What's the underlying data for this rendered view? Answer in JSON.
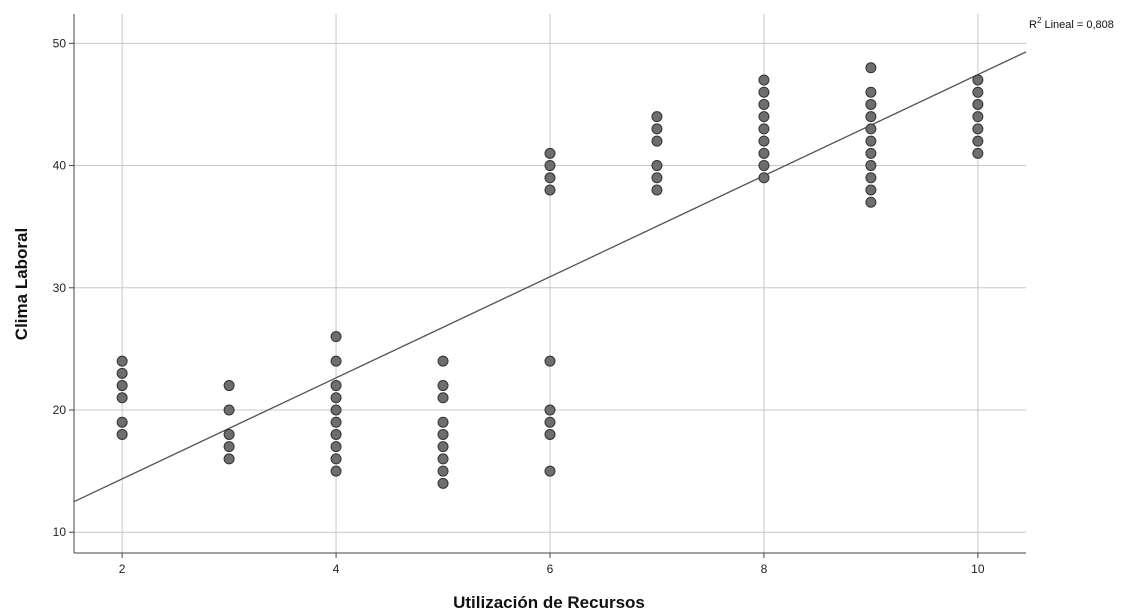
{
  "chart_data": {
    "type": "scatter",
    "title": "",
    "xlabel": "Utilización de Recursos",
    "ylabel": "Clima Laboral",
    "xlim": [
      1.55,
      10.45
    ],
    "ylim": [
      8.3,
      52.4
    ],
    "xticks": [
      2,
      4,
      6,
      8,
      10
    ],
    "yticks": [
      10,
      20,
      30,
      40,
      50
    ],
    "grid": true,
    "r2_prefix": "R",
    "r2_sup": "2",
    "r2_text": " Lineal = 0,808",
    "fit_line": {
      "x": [
        1.55,
        10.45
      ],
      "y": [
        12.5,
        49.3
      ]
    },
    "points": [
      {
        "x": 2,
        "y": 24
      },
      {
        "x": 2,
        "y": 23
      },
      {
        "x": 2,
        "y": 22
      },
      {
        "x": 2,
        "y": 21
      },
      {
        "x": 2,
        "y": 19
      },
      {
        "x": 2,
        "y": 18
      },
      {
        "x": 3,
        "y": 22
      },
      {
        "x": 3,
        "y": 20
      },
      {
        "x": 3,
        "y": 18
      },
      {
        "x": 3,
        "y": 17
      },
      {
        "x": 3,
        "y": 16
      },
      {
        "x": 4,
        "y": 26
      },
      {
        "x": 4,
        "y": 24
      },
      {
        "x": 4,
        "y": 22
      },
      {
        "x": 4,
        "y": 21
      },
      {
        "x": 4,
        "y": 20
      },
      {
        "x": 4,
        "y": 19
      },
      {
        "x": 4,
        "y": 18
      },
      {
        "x": 4,
        "y": 17
      },
      {
        "x": 4,
        "y": 16
      },
      {
        "x": 4,
        "y": 15
      },
      {
        "x": 5,
        "y": 24
      },
      {
        "x": 5,
        "y": 22
      },
      {
        "x": 5,
        "y": 21
      },
      {
        "x": 5,
        "y": 19
      },
      {
        "x": 5,
        "y": 18
      },
      {
        "x": 5,
        "y": 17
      },
      {
        "x": 5,
        "y": 16
      },
      {
        "x": 5,
        "y": 15
      },
      {
        "x": 5,
        "y": 14
      },
      {
        "x": 6,
        "y": 41
      },
      {
        "x": 6,
        "y": 40
      },
      {
        "x": 6,
        "y": 39
      },
      {
        "x": 6,
        "y": 38
      },
      {
        "x": 6,
        "y": 24
      },
      {
        "x": 6,
        "y": 20
      },
      {
        "x": 6,
        "y": 19
      },
      {
        "x": 6,
        "y": 18
      },
      {
        "x": 6,
        "y": 15
      },
      {
        "x": 7,
        "y": 44
      },
      {
        "x": 7,
        "y": 43
      },
      {
        "x": 7,
        "y": 42
      },
      {
        "x": 7,
        "y": 40
      },
      {
        "x": 7,
        "y": 39
      },
      {
        "x": 7,
        "y": 38
      },
      {
        "x": 8,
        "y": 47
      },
      {
        "x": 8,
        "y": 46
      },
      {
        "x": 8,
        "y": 45
      },
      {
        "x": 8,
        "y": 44
      },
      {
        "x": 8,
        "y": 43
      },
      {
        "x": 8,
        "y": 42
      },
      {
        "x": 8,
        "y": 41
      },
      {
        "x": 8,
        "y": 40
      },
      {
        "x": 8,
        "y": 39
      },
      {
        "x": 9,
        "y": 48
      },
      {
        "x": 9,
        "y": 46
      },
      {
        "x": 9,
        "y": 45
      },
      {
        "x": 9,
        "y": 44
      },
      {
        "x": 9,
        "y": 43
      },
      {
        "x": 9,
        "y": 42
      },
      {
        "x": 9,
        "y": 41
      },
      {
        "x": 9,
        "y": 40
      },
      {
        "x": 9,
        "y": 39
      },
      {
        "x": 9,
        "y": 38
      },
      {
        "x": 9,
        "y": 37
      },
      {
        "x": 10,
        "y": 47
      },
      {
        "x": 10,
        "y": 46
      },
      {
        "x": 10,
        "y": 45
      },
      {
        "x": 10,
        "y": 44
      },
      {
        "x": 10,
        "y": 43
      },
      {
        "x": 10,
        "y": 42
      },
      {
        "x": 10,
        "y": 41
      }
    ],
    "colors": {
      "point_fill": "#6e6e6e",
      "point_stroke": "#333333",
      "grid": "#c8c8c8",
      "axis": "#444444",
      "fit_line": "#555555"
    }
  }
}
